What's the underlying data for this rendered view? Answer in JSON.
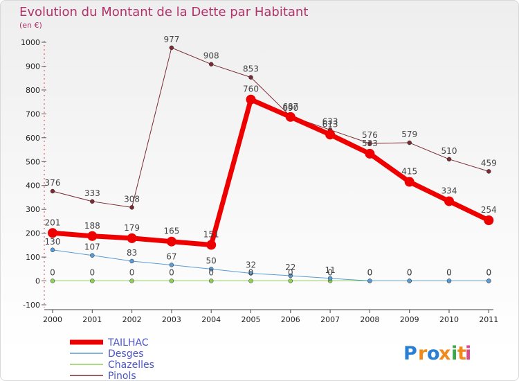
{
  "chart_data": {
    "type": "line",
    "title": "Evolution du Montant de la Dette par Habitant",
    "subtitle": "(en €)",
    "xlabel": "",
    "ylabel": "(en €)",
    "categories": [
      "2000",
      "2001",
      "2002",
      "2003",
      "2004",
      "2005",
      "2006",
      "2007",
      "2008",
      "2009",
      "2010",
      "2011"
    ],
    "ylim": [
      -100,
      1000
    ],
    "yticks": [
      -100,
      0,
      100,
      200,
      300,
      400,
      500,
      600,
      700,
      800,
      900,
      1000
    ],
    "grid": false,
    "legend_position": "bottom-left",
    "series": [
      {
        "name": "Pinols",
        "color": "#7a2a32",
        "values": [
          376,
          333,
          308,
          977,
          908,
          853,
          690,
          633,
          576,
          579,
          510,
          459
        ],
        "labels": [
          "376",
          "333",
          "308",
          "977",
          "908",
          "853",
          "690",
          "633",
          "576",
          "579",
          "510",
          "459"
        ]
      },
      {
        "name": "Chazelles",
        "color": "#8ecf5a",
        "values": [
          0,
          0,
          0,
          0,
          0,
          0,
          0,
          0,
          0,
          0,
          0,
          0
        ],
        "labels": [
          "0",
          "0",
          "0",
          "0",
          "0",
          "0",
          "0",
          "0",
          "0",
          "0",
          "0",
          "0"
        ]
      },
      {
        "name": "Desges",
        "color": "#5a9bd4",
        "values": [
          130,
          107,
          83,
          67,
          50,
          32,
          22,
          11,
          0,
          0,
          0,
          0
        ],
        "labels": [
          "130",
          "107",
          "83",
          "67",
          "50",
          "32",
          "22",
          "11",
          "0",
          "0",
          "0",
          "0"
        ]
      },
      {
        "name": "TAILHAC",
        "color": "#ee0000",
        "values": [
          201,
          188,
          179,
          165,
          151,
          760,
          687,
          613,
          533,
          415,
          334,
          254
        ],
        "labels": [
          "201",
          "188",
          "179",
          "165",
          "151",
          "760",
          "687",
          "613",
          "533",
          "415",
          "334",
          "254"
        ]
      }
    ],
    "legend_order": [
      "TAILHAC",
      "Desges",
      "Chazelles",
      "Pinols"
    ]
  },
  "logo": {
    "text": "Proxiti",
    "letters": [
      "P",
      "r",
      "o",
      "x",
      "i",
      "t",
      "i"
    ],
    "colors": [
      "#2a7fd4",
      "#f08a1a",
      "#2a7fd4",
      "#f08a1a",
      "#3aa84a",
      "#f08a1a",
      "#d84a8a"
    ]
  }
}
